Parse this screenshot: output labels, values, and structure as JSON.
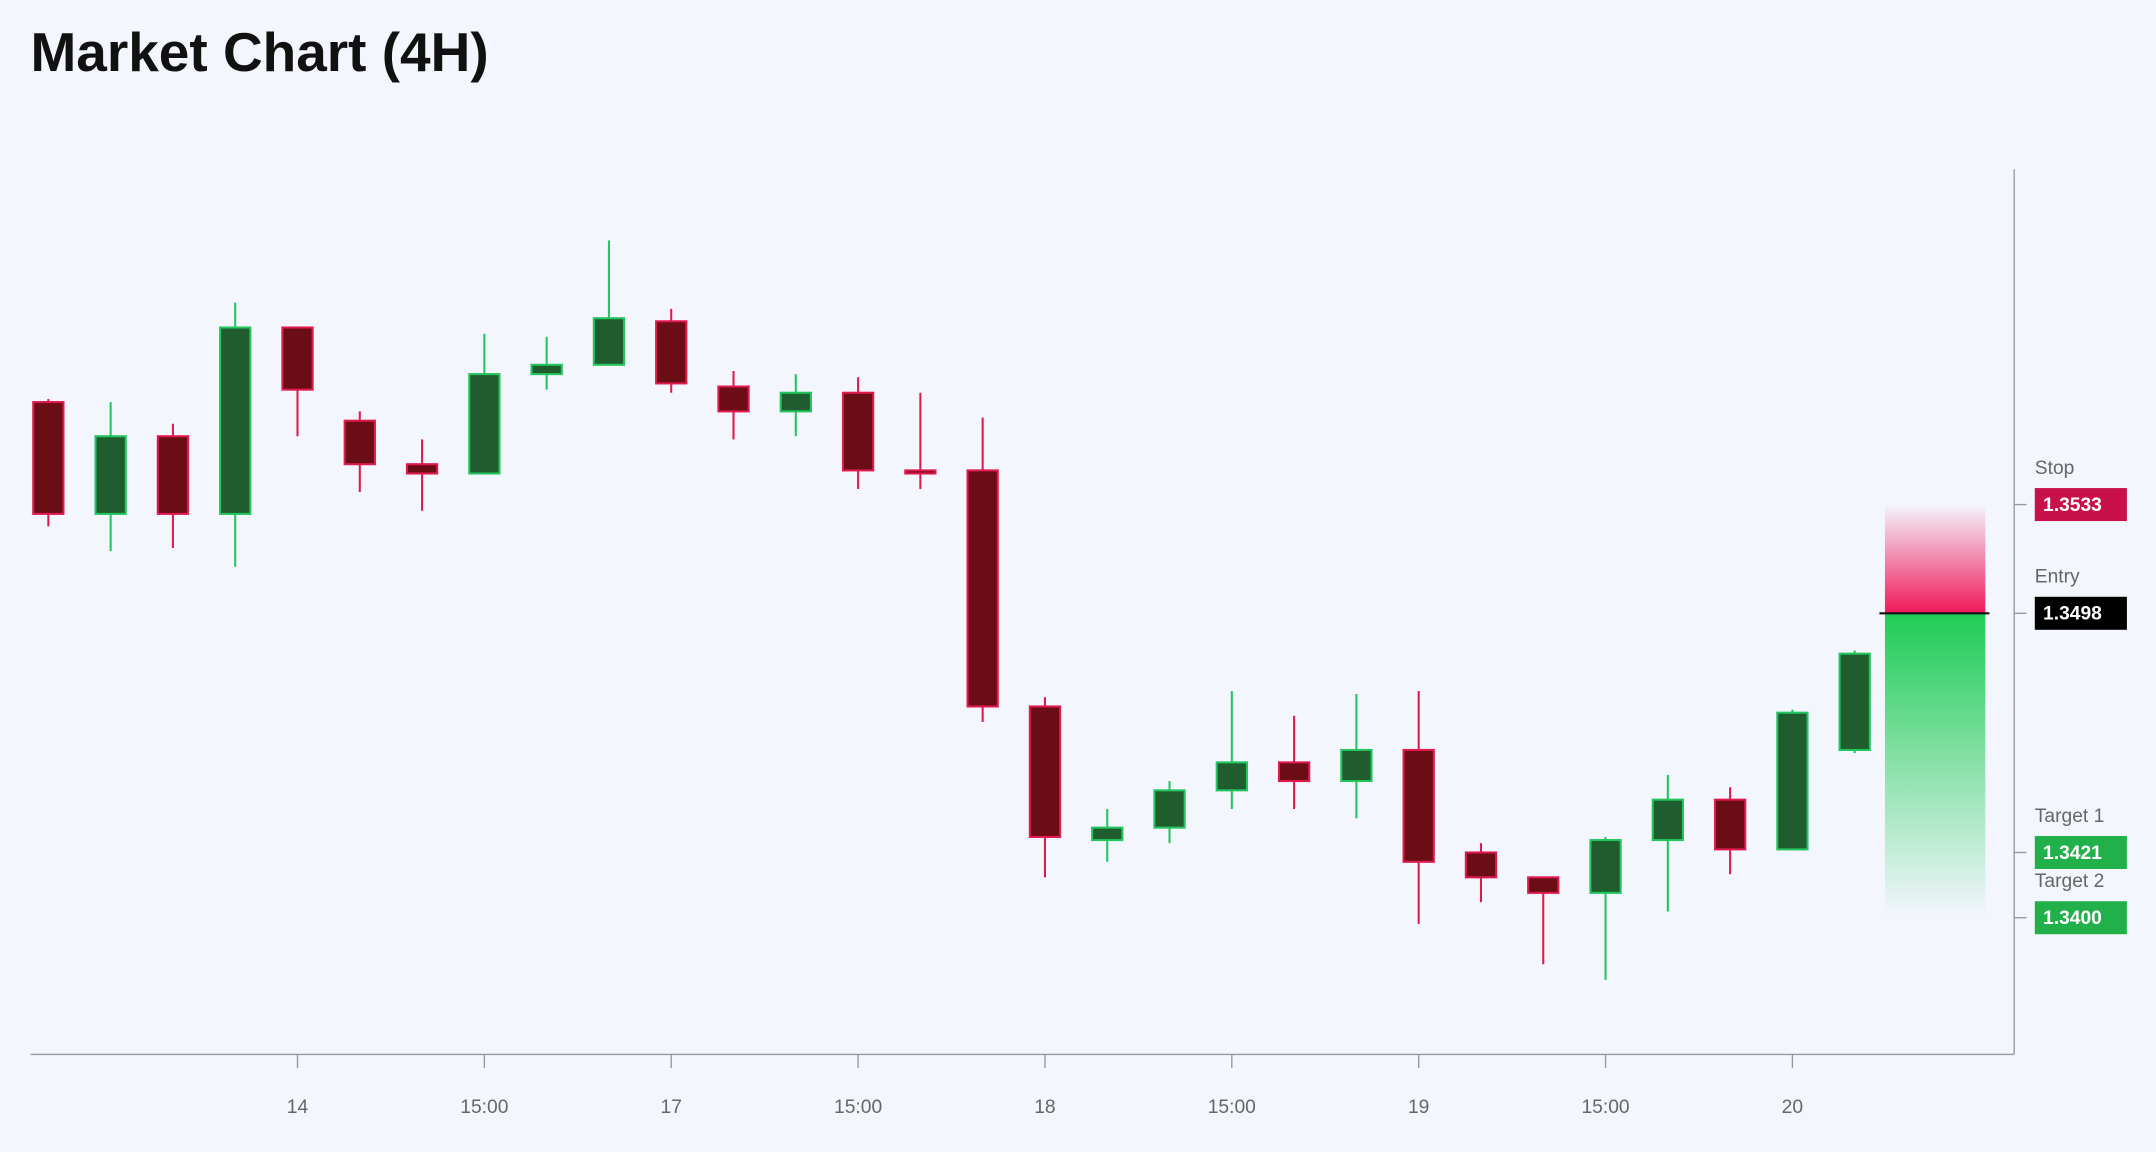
{
  "chart_data": {
    "type": "candlestick",
    "title": "Market Chart (4H)",
    "categories": [
      null,
      null,
      null,
      null,
      "14",
      null,
      null,
      "15:00",
      null,
      null,
      "17",
      null,
      null,
      "15:00",
      null,
      null,
      "18",
      null,
      null,
      "15:00",
      null,
      null,
      "19",
      null,
      null,
      "15:00",
      null,
      null,
      "20",
      null
    ],
    "open": [
      1.3566,
      1.353,
      1.3555,
      1.353,
      1.359,
      1.356,
      1.3546,
      1.3543,
      1.3575,
      1.3578,
      1.3592,
      1.3571,
      1.3563,
      1.3569,
      1.3544,
      1.3544,
      1.3468,
      1.3425,
      1.3429,
      1.3441,
      1.345,
      1.3444,
      1.3454,
      1.3421,
      1.3413,
      1.3408,
      1.3425,
      1.3438,
      1.3422,
      1.3454
    ],
    "high": [
      1.3567,
      1.3566,
      1.3559,
      1.3598,
      1.359,
      1.3563,
      1.3554,
      1.3588,
      1.3587,
      1.3618,
      1.3596,
      1.3576,
      1.3575,
      1.3574,
      1.3569,
      1.3561,
      1.3471,
      1.3435,
      1.3444,
      1.3473,
      1.3465,
      1.3472,
      1.3473,
      1.3424,
      1.3413,
      1.3426,
      1.3446,
      1.3442,
      1.3467,
      1.3486
    ],
    "low": [
      1.3526,
      1.3518,
      1.3519,
      1.3513,
      1.3555,
      1.3537,
      1.3531,
      1.3543,
      1.357,
      1.3578,
      1.3569,
      1.3554,
      1.3555,
      1.3538,
      1.3538,
      1.3463,
      1.3413,
      1.3418,
      1.3424,
      1.3435,
      1.3435,
      1.3432,
      1.3398,
      1.3405,
      1.3385,
      1.338,
      1.3402,
      1.3414,
      1.3422,
      1.3453
    ],
    "close": [
      1.353,
      1.3555,
      1.353,
      1.359,
      1.357,
      1.3546,
      1.3543,
      1.3575,
      1.3578,
      1.3593,
      1.3572,
      1.3563,
      1.3569,
      1.3544,
      1.3543,
      1.3468,
      1.3426,
      1.3429,
      1.3441,
      1.345,
      1.3444,
      1.3454,
      1.3418,
      1.3413,
      1.3408,
      1.3425,
      1.3438,
      1.3422,
      1.3466,
      1.3485
    ],
    "up_color": "#1f5c2e",
    "up_border": "#22c55e",
    "down_color": "#6a0d15",
    "down_border": "#e0194f",
    "ylim": [
      1.3356,
      1.3641
    ],
    "levels": [
      {
        "name": "Stop",
        "value": 1.3533,
        "label": "1.3533",
        "color": "#c8104a"
      },
      {
        "name": "Entry",
        "value": 1.3498,
        "label": "1.3498",
        "color": "#000000"
      },
      {
        "name": "Target 1",
        "value": 1.3421,
        "label": "1.3421",
        "color": "#22b04b"
      },
      {
        "name": "Target 2",
        "value": 1.34,
        "label": "1.3400",
        "color": "#22b04b"
      }
    ]
  }
}
